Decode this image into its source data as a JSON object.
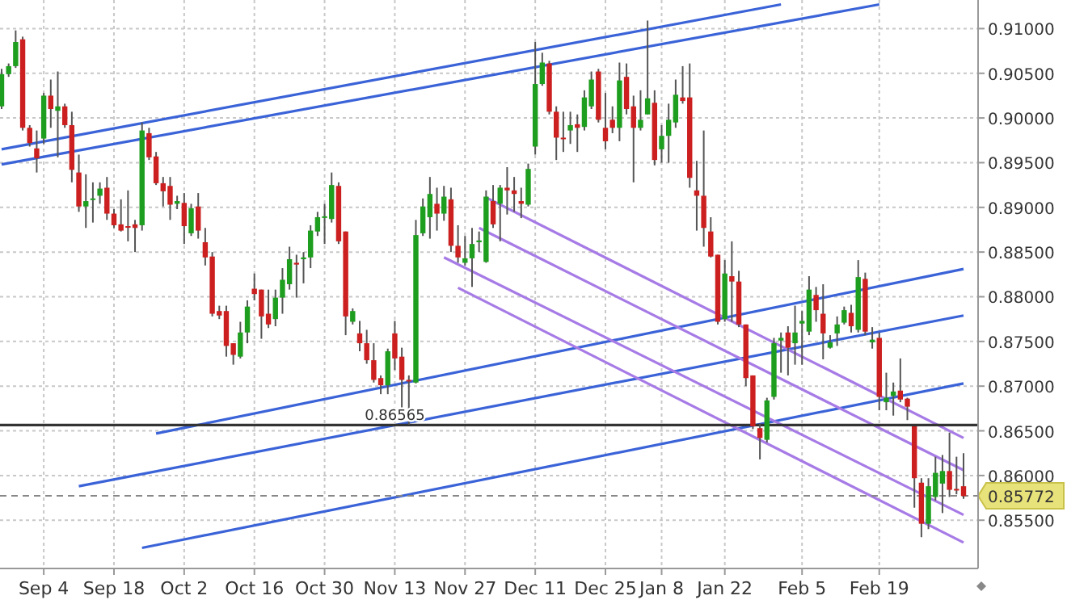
{
  "chart_data": {
    "type": "candlestick",
    "categories": [
      null,
      null,
      null,
      null,
      null,
      null,
      "Sep 4",
      null,
      null,
      null,
      null,
      null,
      null,
      null,
      null,
      null,
      "Sep 18",
      null,
      null,
      null,
      null,
      null,
      null,
      null,
      null,
      null,
      "Oct 2",
      null,
      null,
      null,
      null,
      null,
      null,
      null,
      null,
      null,
      "Oct 16",
      null,
      null,
      null,
      null,
      null,
      null,
      null,
      null,
      null,
      "Oct 30",
      null,
      null,
      null,
      null,
      null,
      null,
      null,
      null,
      null,
      "Nov 13",
      null,
      null,
      null,
      null,
      null,
      null,
      null,
      null,
      null,
      "Nov 27",
      null,
      null,
      null,
      null,
      null,
      null,
      null,
      null,
      null,
      "Dec 11",
      null,
      null,
      null,
      null,
      null,
      null,
      null,
      null,
      null,
      "Dec 25",
      null,
      null,
      null,
      null,
      null,
      null,
      null,
      "Jan 8",
      null,
      null,
      null,
      null,
      null,
      null,
      null,
      null,
      "Jan 22",
      null,
      null,
      null,
      null,
      null,
      null,
      null,
      null,
      null,
      null,
      "Feb 5",
      null,
      null,
      null,
      null,
      null,
      null,
      null,
      null,
      null,
      null,
      "Feb 19",
      null,
      null,
      null,
      null,
      null,
      null,
      null,
      null,
      null,
      null,
      null,
      null
    ],
    "ohlc": [
      [
        0.9013,
        0.9055,
        0.901,
        0.9049
      ],
      [
        0.9049,
        0.9061,
        0.9046,
        0.9058
      ],
      [
        0.9058,
        0.9098,
        0.9056,
        0.9085
      ],
      [
        0.9088,
        0.9091,
        0.8986,
        0.8989
      ],
      [
        0.8989,
        0.8992,
        0.8968,
        0.8972
      ],
      [
        0.8966,
        0.8986,
        0.8939,
        0.8955
      ],
      [
        0.8977,
        0.9028,
        0.8971,
        0.9025
      ],
      [
        0.9025,
        0.9043,
        0.8989,
        0.901
      ],
      [
        0.9008,
        0.9052,
        0.8956,
        0.9013
      ],
      [
        0.9013,
        0.9016,
        0.8989,
        0.8992
      ],
      [
        0.8992,
        0.9007,
        0.8928,
        0.8942
      ],
      [
        0.8939,
        0.8959,
        0.8895,
        0.8901
      ],
      [
        0.8901,
        0.8937,
        0.8877,
        0.8907
      ],
      [
        0.8909,
        0.8928,
        0.8883,
        0.891
      ],
      [
        0.8913,
        0.8928,
        0.8904,
        0.8921
      ],
      [
        0.8922,
        0.8934,
        0.8886,
        0.8893
      ],
      [
        0.8893,
        0.8898,
        0.8877,
        0.888
      ],
      [
        0.8881,
        0.8909,
        0.8873,
        0.8874
      ],
      [
        0.8879,
        0.8919,
        0.8862,
        0.8878
      ],
      [
        0.8881,
        0.8886,
        0.885,
        0.8877
      ],
      [
        0.888,
        0.8995,
        0.8874,
        0.8986
      ],
      [
        0.8983,
        0.8989,
        0.8953,
        0.8956
      ],
      [
        0.8957,
        0.8962,
        0.8925,
        0.8927
      ],
      [
        0.8927,
        0.8934,
        0.8901,
        0.8918
      ],
      [
        0.8924,
        0.8934,
        0.8886,
        0.8903
      ],
      [
        0.8904,
        0.8913,
        0.8898,
        0.8907
      ],
      [
        0.8905,
        0.8916,
        0.8859,
        0.8879
      ],
      [
        0.8871,
        0.8904,
        0.8868,
        0.8899
      ],
      [
        0.8901,
        0.8916,
        0.8865,
        0.8874
      ],
      [
        0.8861,
        0.8877,
        0.8835,
        0.8844
      ],
      [
        0.8845,
        0.885,
        0.8778,
        0.8781
      ],
      [
        0.8784,
        0.879,
        0.8775,
        0.8779
      ],
      [
        0.8784,
        0.879,
        0.8733,
        0.8745
      ],
      [
        0.8748,
        0.8748,
        0.8724,
        0.8735
      ],
      [
        0.8733,
        0.8772,
        0.8731,
        0.876
      ],
      [
        0.876,
        0.8796,
        0.8748,
        0.8789
      ],
      [
        0.8809,
        0.8826,
        0.8796,
        0.8803
      ],
      [
        0.8808,
        0.8808,
        0.8753,
        0.8778
      ],
      [
        0.8781,
        0.8808,
        0.8765,
        0.8769
      ],
      [
        0.8775,
        0.8808,
        0.8767,
        0.8799
      ],
      [
        0.8799,
        0.8832,
        0.8781,
        0.8819
      ],
      [
        0.8814,
        0.8856,
        0.8808,
        0.8842
      ],
      [
        0.8838,
        0.8847,
        0.8799,
        0.8836
      ],
      [
        0.8842,
        0.885,
        0.8815,
        0.8844
      ],
      [
        0.8844,
        0.888,
        0.8832,
        0.8874
      ],
      [
        0.8873,
        0.8895,
        0.8868,
        0.8889
      ],
      [
        0.8889,
        0.8904,
        0.8859,
        0.889
      ],
      [
        0.8887,
        0.8939,
        0.8883,
        0.8925
      ],
      [
        0.8924,
        0.8928,
        0.8859,
        0.8862
      ],
      [
        0.8873,
        0.8873,
        0.8757,
        0.8778
      ],
      [
        0.8772,
        0.8787,
        0.8769,
        0.8784
      ],
      [
        0.8759,
        0.8773,
        0.8739,
        0.8748
      ],
      [
        0.8748,
        0.8763,
        0.8725,
        0.8729
      ],
      [
        0.8729,
        0.8748,
        0.8704,
        0.8707
      ],
      [
        0.8709,
        0.8712,
        0.8691,
        0.8701
      ],
      [
        0.8701,
        0.8742,
        0.8691,
        0.8739
      ],
      [
        0.8759,
        0.8773,
        0.8718,
        0.8731
      ],
      [
        0.8733,
        0.8743,
        0.8667,
        0.8707
      ],
      [
        0.8707,
        0.8712,
        0.8657,
        0.8706
      ],
      [
        0.8704,
        0.8886,
        0.8703,
        0.8869
      ],
      [
        0.8871,
        0.891,
        0.8868,
        0.8901
      ],
      [
        0.8889,
        0.8934,
        0.8865,
        0.8915
      ],
      [
        0.8904,
        0.8922,
        0.8874,
        0.8893
      ],
      [
        0.8893,
        0.8924,
        0.8885,
        0.8912
      ],
      [
        0.8909,
        0.8922,
        0.885,
        0.8857
      ],
      [
        0.8857,
        0.888,
        0.8838,
        0.8844
      ],
      [
        0.8838,
        0.8868,
        0.8835,
        0.8843
      ],
      [
        0.8843,
        0.8877,
        0.8811,
        0.8859
      ],
      [
        0.8861,
        0.8873,
        0.885,
        0.8863
      ],
      [
        0.8839,
        0.8919,
        0.8838,
        0.8912
      ],
      [
        0.8907,
        0.8925,
        0.8877,
        0.8881
      ],
      [
        0.8904,
        0.8925,
        0.8862,
        0.8922
      ],
      [
        0.8922,
        0.8945,
        0.8892,
        0.8919
      ],
      [
        0.8919,
        0.8934,
        0.8895,
        0.8915
      ],
      [
        0.8907,
        0.8922,
        0.8888,
        0.8904
      ],
      [
        0.8903,
        0.8949,
        0.8901,
        0.8943
      ],
      [
        0.8968,
        0.9085,
        0.8959,
        0.9038
      ],
      [
        0.9038,
        0.9073,
        0.9036,
        0.9062
      ],
      [
        0.9061,
        0.9064,
        0.9004,
        0.9007
      ],
      [
        0.9007,
        0.9013,
        0.8953,
        0.8978
      ],
      [
        0.8978,
        0.9007,
        0.8962,
        0.8977
      ],
      [
        0.8986,
        0.9007,
        0.8971,
        0.8992
      ],
      [
        0.8993,
        0.9004,
        0.8962,
        0.8989
      ],
      [
        0.899,
        0.9031,
        0.8986,
        0.9023
      ],
      [
        0.9013,
        0.9052,
        0.901,
        0.9043
      ],
      [
        0.9052,
        0.9055,
        0.8995,
        0.8998
      ],
      [
        0.8989,
        0.9028,
        0.8965,
        0.8974
      ],
      [
        0.8998,
        0.9013,
        0.8983,
        0.8989
      ],
      [
        0.8989,
        0.9062,
        0.8974,
        0.9042
      ],
      [
        0.9046,
        0.9061,
        0.9004,
        0.901
      ],
      [
        0.9013,
        0.9025,
        0.8928,
        0.8989
      ],
      [
        0.8989,
        0.9031,
        0.8986,
        0.8998
      ],
      [
        0.9004,
        0.9109,
        0.9004,
        0.9022
      ],
      [
        0.9017,
        0.9031,
        0.8947,
        0.8953
      ],
      [
        0.8965,
        0.8992,
        0.895,
        0.898
      ],
      [
        0.898,
        0.9016,
        0.895,
        0.8998
      ],
      [
        0.8995,
        0.9043,
        0.8989,
        0.9026
      ],
      [
        0.9023,
        0.9058,
        0.9016,
        0.9019
      ],
      [
        0.9023,
        0.9061,
        0.8922,
        0.8933
      ],
      [
        0.8919,
        0.8952,
        0.8874,
        0.8913
      ],
      [
        0.8913,
        0.8986,
        0.8856,
        0.8877
      ],
      [
        0.8873,
        0.8889,
        0.8844,
        0.8845
      ],
      [
        0.8847,
        0.8847,
        0.8769,
        0.8772
      ],
      [
        0.8775,
        0.8841,
        0.8772,
        0.8826
      ],
      [
        0.8823,
        0.8862,
        0.8772,
        0.8817
      ],
      [
        0.8817,
        0.8829,
        0.8766,
        0.8769
      ],
      [
        0.8769,
        0.8769,
        0.87,
        0.8709
      ],
      [
        0.8712,
        0.8712,
        0.8652,
        0.8655
      ],
      [
        0.8653,
        0.8658,
        0.8618,
        0.8642
      ],
      [
        0.864,
        0.8687,
        0.8637,
        0.8684
      ],
      [
        0.8688,
        0.8754,
        0.8685,
        0.8748
      ],
      [
        0.8751,
        0.876,
        0.8715,
        0.8754
      ],
      [
        0.876,
        0.8767,
        0.8712,
        0.8743
      ],
      [
        0.8748,
        0.879,
        0.8724,
        0.876
      ],
      [
        0.877,
        0.8784,
        0.8724,
        0.8773
      ],
      [
        0.8761,
        0.8823,
        0.8757,
        0.8808
      ],
      [
        0.8802,
        0.8811,
        0.8772,
        0.8785
      ],
      [
        0.8781,
        0.8814,
        0.873,
        0.8759
      ],
      [
        0.8743,
        0.8757,
        0.8742,
        0.8749
      ],
      [
        0.8759,
        0.8778,
        0.8745,
        0.8769
      ],
      [
        0.8771,
        0.8789,
        0.8769,
        0.8785
      ],
      [
        0.8782,
        0.8791,
        0.876,
        0.8767
      ],
      [
        0.8763,
        0.8841,
        0.876,
        0.8822
      ],
      [
        0.882,
        0.8827,
        0.8757,
        0.8761
      ],
      [
        0.8749,
        0.8766,
        0.8742,
        0.8752
      ],
      [
        0.8754,
        0.876,
        0.8673,
        0.8688
      ],
      [
        0.8682,
        0.8715,
        0.8673,
        0.8687
      ],
      [
        0.8689,
        0.8704,
        0.8667,
        0.8694
      ],
      [
        0.8695,
        0.8731,
        0.8682,
        0.8685
      ],
      [
        0.8686,
        0.8687,
        0.8662,
        0.8677
      ],
      [
        0.8655,
        0.8655,
        0.8564,
        0.8597
      ],
      [
        0.8592,
        0.8597,
        0.8531,
        0.8546
      ],
      [
        0.8546,
        0.8597,
        0.854,
        0.8588
      ],
      [
        0.8576,
        0.8621,
        0.8572,
        0.8603
      ],
      [
        0.8591,
        0.8623,
        0.8558,
        0.8605
      ],
      [
        0.8605,
        0.8648,
        0.8576,
        0.8584
      ],
      [
        0.8585,
        0.8621,
        0.8579,
        0.8584
      ],
      [
        0.8588,
        0.8625,
        0.8574,
        0.8577
      ]
    ],
    "colors": [
      "#1e9e1e",
      "#1e9e1e",
      "#1e9e1e",
      "#cc1f1f",
      "#cc1f1f",
      "#cc1f1f",
      "#1e9e1e",
      "#cc1f1f",
      "#1e9e1e",
      "#cc1f1f",
      "#cc1f1f",
      "#cc1f1f",
      "#1e9e1e",
      "#1e9e1e",
      "#1e9e1e",
      "#cc1f1f",
      "#cc1f1f",
      "#cc1f1f",
      "#cc1f1f",
      "#cc1f1f",
      "#1e9e1e",
      "#cc1f1f",
      "#cc1f1f",
      "#cc1f1f",
      "#cc1f1f",
      "#1e9e1e",
      "#cc1f1f",
      "#1e9e1e",
      "#cc1f1f",
      "#cc1f1f",
      "#cc1f1f",
      "#cc1f1f",
      "#cc1f1f",
      "#cc1f1f",
      "#1e9e1e",
      "#1e9e1e",
      "#cc1f1f",
      "#cc1f1f",
      "#cc1f1f",
      "#1e9e1e",
      "#1e9e1e",
      "#1e9e1e",
      "#cc1f1f",
      "#1e9e1e",
      "#1e9e1e",
      "#1e9e1e",
      "#1e9e1e",
      "#1e9e1e",
      "#cc1f1f",
      "#cc1f1f",
      "#1e9e1e",
      "#cc1f1f",
      "#cc1f1f",
      "#cc1f1f",
      "#cc1f1f",
      "#1e9e1e",
      "#cc1f1f",
      "#cc1f1f",
      "#cc1f1f",
      "#1e9e1e",
      "#1e9e1e",
      "#1e9e1e",
      "#cc1f1f",
      "#1e9e1e",
      "#cc1f1f",
      "#cc1f1f",
      "#1e9e1e",
      "#1e9e1e",
      "#1e9e1e",
      "#1e9e1e",
      "#cc1f1f",
      "#1e9e1e",
      "#cc1f1f",
      "#cc1f1f",
      "#cc1f1f",
      "#1e9e1e",
      "#1e9e1e",
      "#1e9e1e",
      "#cc1f1f",
      "#cc1f1f",
      "#cc1f1f",
      "#1e9e1e",
      "#cc1f1f",
      "#1e9e1e",
      "#1e9e1e",
      "#cc1f1f",
      "#cc1f1f",
      "#cc1f1f",
      "#1e9e1e",
      "#cc1f1f",
      "#cc1f1f",
      "#1e9e1e",
      "#1e9e1e",
      "#cc1f1f",
      "#1e9e1e",
      "#1e9e1e",
      "#1e9e1e",
      "#cc1f1f",
      "#cc1f1f",
      "#cc1f1f",
      "#cc1f1f",
      "#cc1f1f",
      "#cc1f1f",
      "#1e9e1e",
      "#cc1f1f",
      "#cc1f1f",
      "#cc1f1f",
      "#cc1f1f",
      "#cc1f1f",
      "#1e9e1e",
      "#1e9e1e",
      "#1e9e1e",
      "#cc1f1f",
      "#1e9e1e",
      "#1e9e1e",
      "#1e9e1e",
      "#cc1f1f",
      "#cc1f1f",
      "#1e9e1e",
      "#1e9e1e",
      "#1e9e1e",
      "#cc1f1f",
      "#1e9e1e",
      "#cc1f1f",
      "#1e9e1e",
      "#cc1f1f",
      "#1e9e1e",
      "#1e9e1e",
      "#cc1f1f",
      "#cc1f1f",
      "#cc1f1f",
      "#cc1f1f",
      "#1e9e1e",
      "#1e9e1e",
      "#1e9e1e",
      "#cc1f1f",
      "#cc1f1f",
      "#cc1f1f"
    ],
    "ylim": [
      0.8496,
      0.9132
    ],
    "yticks": [
      {
        "value": 0.855,
        "label": "0.85500"
      },
      {
        "value": 0.86,
        "label": "0.86000"
      },
      {
        "value": 0.865,
        "label": "0.86500"
      },
      {
        "value": 0.87,
        "label": "0.87000"
      },
      {
        "value": 0.875,
        "label": "0.87500"
      },
      {
        "value": 0.88,
        "label": "0.88000"
      },
      {
        "value": 0.885,
        "label": "0.88500"
      },
      {
        "value": 0.89,
        "label": "0.89000"
      },
      {
        "value": 0.895,
        "label": "0.89500"
      },
      {
        "value": 0.9,
        "label": "0.90000"
      },
      {
        "value": 0.905,
        "label": "0.90500"
      },
      {
        "value": 0.91,
        "label": "0.91000"
      }
    ],
    "grid": true,
    "ref_lines": [
      {
        "axis": "y",
        "value": 0.86565,
        "label": "0.86565",
        "color": "#333333",
        "line_style": "solid"
      },
      {
        "axis": "y",
        "value": 0.85772,
        "label": "0.85772",
        "color": "#888888",
        "line_style": "dashed"
      }
    ],
    "series": [
      {
        "type": "line",
        "color": "#3b63d8",
        "values": [
          0.8965,
          null,
          null,
          null,
          null,
          null,
          null,
          null,
          null,
          null,
          null,
          null,
          null,
          null,
          null,
          null,
          null,
          null,
          null,
          null,
          null,
          null,
          null,
          null,
          null,
          null,
          null,
          null,
          null,
          null,
          null,
          null,
          null,
          null,
          null,
          null,
          null,
          null,
          null,
          null,
          null,
          null,
          null,
          null,
          null,
          null,
          null,
          null,
          null,
          null,
          null,
          null,
          null,
          null,
          null,
          null,
          null,
          null,
          null,
          null,
          null,
          null,
          null,
          null,
          null,
          null,
          null,
          null,
          null,
          null,
          null,
          null,
          null,
          null,
          null,
          null,
          null,
          null,
          null,
          null,
          null,
          null,
          null,
          null,
          null,
          null,
          null,
          null,
          null,
          null,
          null,
          null,
          null,
          null,
          null,
          null,
          null,
          null,
          null,
          null,
          null,
          null,
          null,
          null,
          null,
          null,
          null,
          null,
          null,
          null,
          null,
          0.9127,
          null,
          null,
          null,
          null,
          null,
          null,
          null,
          null,
          null,
          null,
          null,
          null,
          null,
          null,
          null,
          null,
          null,
          null,
          null,
          null,
          null,
          null,
          null,
          null,
          null,
          null
        ]
      },
      {
        "type": "line",
        "color": "#3b63d8",
        "values": [
          0.8948,
          null,
          null,
          null,
          null,
          null,
          null,
          null,
          null,
          null,
          null,
          null,
          null,
          null,
          null,
          null,
          null,
          null,
          null,
          null,
          null,
          null,
          null,
          null,
          null,
          null,
          null,
          null,
          null,
          null,
          null,
          null,
          null,
          null,
          null,
          null,
          null,
          null,
          null,
          null,
          null,
          null,
          null,
          null,
          null,
          null,
          null,
          null,
          null,
          null,
          null,
          null,
          null,
          null,
          null,
          null,
          null,
          null,
          null,
          null,
          null,
          null,
          null,
          null,
          null,
          null,
          null,
          null,
          null,
          null,
          null,
          null,
          null,
          null,
          null,
          null,
          null,
          null,
          null,
          null,
          null,
          null,
          null,
          null,
          null,
          null,
          null,
          null,
          null,
          null,
          null,
          null,
          null,
          null,
          null,
          null,
          null,
          null,
          null,
          null,
          null,
          null,
          null,
          null,
          null,
          null,
          null,
          null,
          null,
          null,
          null,
          null,
          null,
          null,
          null,
          null,
          null,
          null,
          null,
          null,
          null,
          null,
          null,
          null,
          null,
          0.9127,
          null,
          null,
          null,
          null,
          null,
          null,
          null,
          null,
          null,
          null,
          null,
          null
        ]
      },
      {
        "type": "line",
        "color": "#3b63d8",
        "values": [
          null,
          null,
          null,
          null,
          null,
          null,
          null,
          null,
          null,
          null,
          null,
          null,
          null,
          null,
          null,
          null,
          null,
          null,
          null,
          null,
          null,
          null,
          0.8647,
          null,
          null,
          null,
          null,
          null,
          null,
          null,
          null,
          null,
          null,
          null,
          null,
          null,
          null,
          null,
          null,
          null,
          null,
          null,
          null,
          null,
          null,
          null,
          null,
          null,
          null,
          null,
          null,
          null,
          null,
          null,
          null,
          null,
          null,
          null,
          null,
          null,
          null,
          null,
          null,
          null,
          null,
          null,
          null,
          null,
          null,
          null,
          null,
          null,
          null,
          null,
          null,
          null,
          null,
          null,
          null,
          null,
          null,
          null,
          null,
          null,
          null,
          null,
          null,
          null,
          null,
          null,
          null,
          null,
          null,
          null,
          null,
          null,
          null,
          null,
          null,
          null,
          null,
          null,
          null,
          null,
          null,
          null,
          null,
          null,
          null,
          null,
          null,
          null,
          null,
          null,
          null,
          null,
          null,
          null,
          null,
          null,
          null,
          null,
          null,
          null,
          null,
          null,
          null,
          null,
          null,
          null,
          null,
          null,
          null,
          null,
          null,
          null,
          null,
          0.8831
        ]
      },
      {
        "type": "line",
        "color": "#3b63d8",
        "values": [
          null,
          null,
          null,
          null,
          null,
          null,
          null,
          null,
          null,
          null,
          null,
          0.8588,
          null,
          null,
          null,
          null,
          null,
          null,
          null,
          null,
          null,
          null,
          null,
          null,
          null,
          null,
          null,
          null,
          null,
          null,
          null,
          null,
          null,
          null,
          null,
          null,
          null,
          null,
          null,
          null,
          null,
          null,
          null,
          null,
          null,
          null,
          null,
          null,
          null,
          null,
          null,
          null,
          null,
          null,
          null,
          null,
          null,
          null,
          null,
          null,
          null,
          null,
          null,
          null,
          null,
          null,
          null,
          null,
          null,
          null,
          null,
          null,
          null,
          null,
          null,
          null,
          null,
          null,
          null,
          null,
          null,
          null,
          null,
          null,
          null,
          null,
          null,
          null,
          null,
          null,
          null,
          null,
          null,
          null,
          null,
          null,
          null,
          null,
          null,
          null,
          null,
          null,
          null,
          null,
          null,
          null,
          null,
          null,
          null,
          null,
          null,
          null,
          null,
          null,
          null,
          null,
          null,
          null,
          null,
          null,
          null,
          null,
          null,
          null,
          null,
          null,
          null,
          null,
          null,
          null,
          null,
          null,
          null,
          null,
          null,
          null,
          null,
          0.8779
        ]
      },
      {
        "type": "line",
        "color": "#3b63d8",
        "values": [
          null,
          null,
          null,
          null,
          null,
          null,
          null,
          null,
          null,
          null,
          null,
          null,
          null,
          null,
          null,
          null,
          null,
          null,
          null,
          null,
          0.8519,
          null,
          null,
          null,
          null,
          null,
          null,
          null,
          null,
          null,
          null,
          null,
          null,
          null,
          null,
          null,
          null,
          null,
          null,
          null,
          null,
          null,
          null,
          null,
          null,
          null,
          null,
          null,
          null,
          null,
          null,
          null,
          null,
          null,
          null,
          null,
          null,
          null,
          null,
          null,
          null,
          null,
          null,
          null,
          null,
          null,
          null,
          null,
          null,
          null,
          null,
          null,
          null,
          null,
          null,
          null,
          null,
          null,
          null,
          null,
          null,
          null,
          null,
          null,
          null,
          null,
          null,
          null,
          null,
          null,
          null,
          null,
          null,
          null,
          null,
          null,
          null,
          null,
          null,
          null,
          null,
          null,
          null,
          null,
          null,
          null,
          null,
          null,
          null,
          null,
          null,
          null,
          null,
          null,
          null,
          null,
          null,
          null,
          null,
          null,
          null,
          null,
          null,
          null,
          null,
          null,
          null,
          null,
          null,
          null,
          null,
          null,
          null,
          null,
          null,
          null,
          null,
          0.8703
        ]
      },
      {
        "type": "line",
        "color": "#a77be6",
        "values": [
          null,
          null,
          null,
          null,
          null,
          null,
          null,
          null,
          null,
          null,
          null,
          null,
          null,
          null,
          null,
          null,
          null,
          null,
          null,
          null,
          null,
          null,
          null,
          null,
          null,
          null,
          null,
          null,
          null,
          null,
          null,
          null,
          null,
          null,
          null,
          null,
          null,
          null,
          null,
          null,
          null,
          null,
          null,
          null,
          null,
          null,
          null,
          null,
          null,
          null,
          null,
          null,
          null,
          null,
          null,
          null,
          null,
          null,
          null,
          null,
          null,
          null,
          null,
          null,
          null,
          null,
          null,
          null,
          null,
          0.8911,
          null,
          null,
          null,
          null,
          null,
          null,
          null,
          null,
          null,
          null,
          null,
          null,
          null,
          null,
          null,
          null,
          null,
          null,
          null,
          null,
          null,
          null,
          null,
          null,
          null,
          null,
          null,
          null,
          null,
          null,
          null,
          null,
          null,
          null,
          null,
          null,
          null,
          null,
          null,
          null,
          null,
          null,
          null,
          null,
          null,
          null,
          null,
          null,
          null,
          null,
          null,
          null,
          null,
          null,
          null,
          null,
          null,
          null,
          null,
          null,
          null,
          null,
          null,
          null,
          null,
          null,
          null,
          0.8642
        ]
      },
      {
        "type": "line",
        "color": "#a77be6",
        "values": [
          null,
          null,
          null,
          null,
          null,
          null,
          null,
          null,
          null,
          null,
          null,
          null,
          null,
          null,
          null,
          null,
          null,
          null,
          null,
          null,
          null,
          null,
          null,
          null,
          null,
          null,
          null,
          null,
          null,
          null,
          null,
          null,
          null,
          null,
          null,
          null,
          null,
          null,
          null,
          null,
          null,
          null,
          null,
          null,
          null,
          null,
          null,
          null,
          null,
          null,
          null,
          null,
          null,
          null,
          null,
          null,
          null,
          null,
          null,
          null,
          null,
          null,
          null,
          null,
          null,
          null,
          null,
          null,
          0.8877,
          null,
          null,
          null,
          null,
          null,
          null,
          null,
          null,
          null,
          null,
          null,
          null,
          null,
          null,
          null,
          null,
          null,
          null,
          null,
          null,
          null,
          null,
          null,
          null,
          null,
          null,
          null,
          null,
          null,
          null,
          null,
          null,
          null,
          null,
          null,
          null,
          null,
          null,
          null,
          null,
          null,
          null,
          null,
          null,
          null,
          null,
          null,
          null,
          null,
          null,
          null,
          null,
          null,
          null,
          null,
          null,
          null,
          null,
          null,
          null,
          null,
          null,
          null,
          null,
          null,
          null,
          null,
          null,
          0.8606
        ]
      },
      {
        "type": "line",
        "color": "#a77be6",
        "values": [
          null,
          null,
          null,
          null,
          null,
          null,
          null,
          null,
          null,
          null,
          null,
          null,
          null,
          null,
          null,
          null,
          null,
          null,
          null,
          null,
          null,
          null,
          null,
          null,
          null,
          null,
          null,
          null,
          null,
          null,
          null,
          null,
          null,
          null,
          null,
          null,
          null,
          null,
          null,
          null,
          null,
          null,
          null,
          null,
          null,
          null,
          null,
          null,
          null,
          null,
          null,
          null,
          null,
          null,
          null,
          null,
          null,
          null,
          null,
          null,
          null,
          null,
          null,
          0.8844,
          null,
          null,
          null,
          null,
          null,
          null,
          null,
          null,
          null,
          null,
          null,
          null,
          null,
          null,
          null,
          null,
          null,
          null,
          null,
          null,
          null,
          null,
          null,
          null,
          null,
          null,
          null,
          null,
          null,
          null,
          null,
          null,
          null,
          null,
          null,
          null,
          null,
          null,
          null,
          null,
          null,
          null,
          null,
          null,
          null,
          null,
          null,
          null,
          null,
          null,
          null,
          null,
          null,
          null,
          null,
          null,
          null,
          null,
          null,
          null,
          null,
          null,
          null,
          null,
          null,
          null,
          null,
          null,
          null,
          null,
          null,
          null,
          null,
          0.8556
        ]
      },
      {
        "type": "line",
        "color": "#a77be6",
        "values": [
          null,
          null,
          null,
          null,
          null,
          null,
          null,
          null,
          null,
          null,
          null,
          null,
          null,
          null,
          null,
          null,
          null,
          null,
          null,
          null,
          null,
          null,
          null,
          null,
          null,
          null,
          null,
          null,
          null,
          null,
          null,
          null,
          null,
          null,
          null,
          null,
          null,
          null,
          null,
          null,
          null,
          null,
          null,
          null,
          null,
          null,
          null,
          null,
          null,
          null,
          null,
          null,
          null,
          null,
          null,
          null,
          null,
          null,
          null,
          null,
          null,
          null,
          null,
          null,
          null,
          0.881,
          null,
          null,
          null,
          null,
          null,
          null,
          null,
          null,
          null,
          null,
          null,
          null,
          null,
          null,
          null,
          null,
          null,
          null,
          null,
          null,
          null,
          null,
          null,
          null,
          null,
          null,
          null,
          null,
          null,
          null,
          null,
          null,
          null,
          null,
          null,
          null,
          null,
          null,
          null,
          null,
          null,
          null,
          null,
          null,
          null,
          null,
          null,
          null,
          null,
          null,
          null,
          null,
          null,
          null,
          null,
          null,
          null,
          null,
          null,
          null,
          null,
          null,
          null,
          null,
          null,
          null,
          null,
          null,
          null,
          null,
          null,
          0.8525
        ]
      }
    ]
  }
}
